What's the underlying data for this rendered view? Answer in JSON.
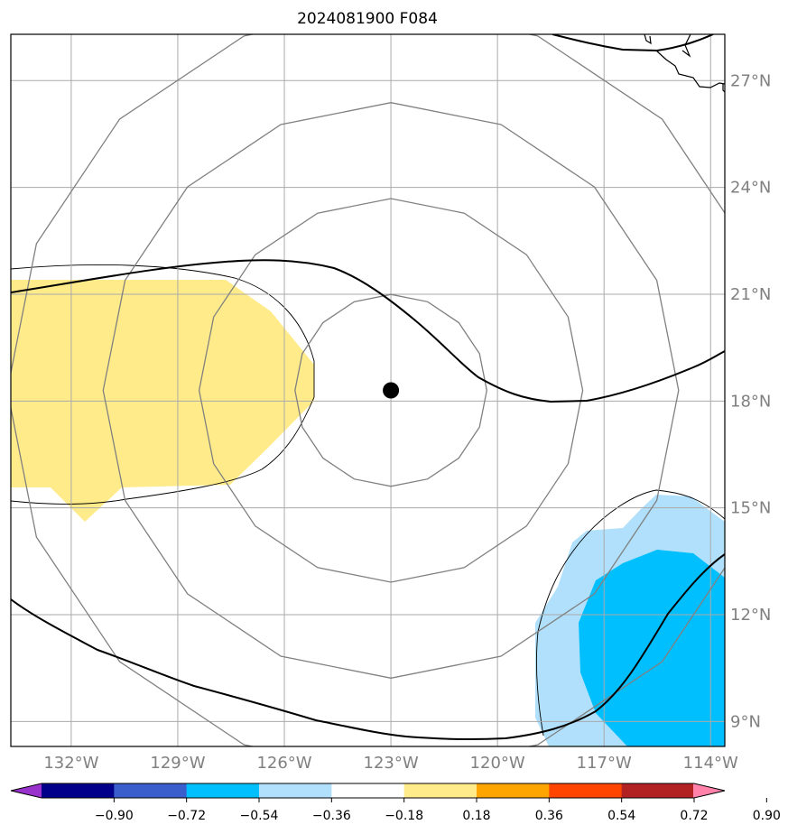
{
  "title": "2024081900 F084",
  "map": {
    "lon_range": [
      -133.7,
      -113.6
    ],
    "lat_range": [
      8.3,
      28.3
    ],
    "projection": "PlateCarree",
    "grid": true,
    "storm_center": {
      "lon": -123.0,
      "lat": 18.3
    },
    "lon_ticks": [
      {
        "value": -132,
        "label": "132°W"
      },
      {
        "value": -129,
        "label": "129°W"
      },
      {
        "value": -126,
        "label": "126°W"
      },
      {
        "value": -123,
        "label": "123°W"
      },
      {
        "value": -120,
        "label": "120°W"
      },
      {
        "value": -117,
        "label": "117°W"
      },
      {
        "value": -114,
        "label": "114°W"
      }
    ],
    "lat_ticks": [
      {
        "value": 9,
        "label": "9°N"
      },
      {
        "value": 12,
        "label": "12°N"
      },
      {
        "value": 15,
        "label": "15°N"
      },
      {
        "value": 18,
        "label": "18°N"
      },
      {
        "value": 21,
        "label": "21°N"
      },
      {
        "value": 24,
        "label": "24°N"
      },
      {
        "value": 27,
        "label": "27°N"
      }
    ],
    "range_rings_deg": [
      2.7,
      5.4,
      8.1,
      10.8
    ],
    "colors": {
      "ring": "#808080",
      "grid": "#aaaaaa",
      "positive_fill": "#ffeb8a",
      "negative_light": "#b0e0fb",
      "negative_deep": "#00bfff"
    }
  },
  "colorbar": {
    "ticks": [
      "−0.90",
      "−0.72",
      "−0.54",
      "−0.36",
      "−0.18",
      "0.18",
      "0.36",
      "0.54",
      "0.72",
      "0.90"
    ],
    "colors": [
      "#9932cc",
      "#00008b",
      "#3a5fcd",
      "#00bfff",
      "#b0e0fb",
      "#ffffff",
      "#ffeb8a",
      "#ffa500",
      "#ff4500",
      "#b22222",
      "#ff82ab"
    ]
  }
}
